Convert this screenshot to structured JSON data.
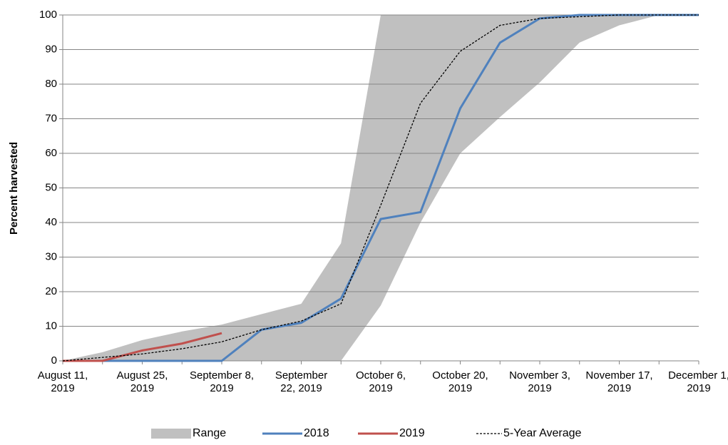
{
  "chart_data": {
    "type": "line",
    "y_label": "Percent harvested",
    "categories": [
      "August 11, 2019",
      null,
      "August 25, 2019",
      null,
      "September 8, 2019",
      null,
      "September 22, 2019",
      null,
      "October 6, 2019",
      null,
      "October 20, 2019",
      null,
      "November 3, 2019",
      null,
      "November 17, 2019",
      null,
      "December 1, 2019"
    ],
    "ylim": [
      0,
      100
    ],
    "yticks": [
      0,
      10,
      20,
      30,
      40,
      50,
      60,
      70,
      80,
      90,
      100
    ],
    "grid": true,
    "legend": "bottom",
    "series": [
      {
        "name": "Range",
        "kind": "band",
        "color": "#c0c0c0",
        "values": [
          0,
          2.5,
          6,
          8.5,
          10.5,
          13.5,
          16.5,
          34,
          100,
          100,
          100,
          100,
          100,
          100,
          100,
          100,
          100
        ],
        "lower": [
          0,
          0,
          0,
          0,
          0,
          0,
          0,
          0,
          16,
          40,
          60,
          70.5,
          80.5,
          92,
          97,
          100,
          100
        ]
      },
      {
        "name": "2018",
        "kind": "line",
        "color": "#4f81bd",
        "values": [
          0,
          0,
          0,
          0,
          0,
          9,
          11,
          18,
          41,
          43,
          73,
          92,
          99,
          100,
          100,
          100,
          100
        ]
      },
      {
        "name": "2019",
        "kind": "line",
        "color": "#c0504d",
        "values": [
          0,
          0,
          3,
          5,
          8,
          null,
          null,
          null,
          null,
          null,
          null,
          null,
          null,
          null,
          null,
          null,
          null
        ]
      },
      {
        "name": "5-Year Average",
        "kind": "dashed",
        "color": "#000000",
        "values": [
          0,
          1,
          2,
          3.5,
          5.5,
          9,
          11.5,
          16.5,
          45,
          74.5,
          89.5,
          97,
          99,
          99.5,
          100,
          100,
          100
        ]
      }
    ]
  }
}
